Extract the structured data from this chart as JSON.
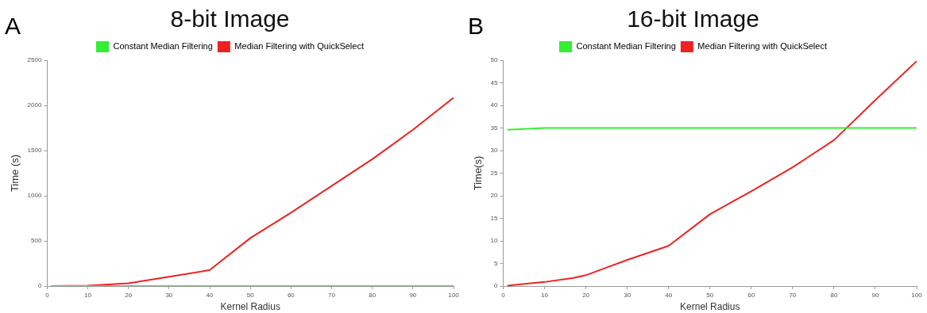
{
  "chart_data": [
    {
      "type": "line",
      "title": "8-bit Image",
      "xlabel": "Kernel Radius",
      "ylabel": "Time (s)",
      "annotations": [
        "A"
      ],
      "x": [
        1,
        10,
        20,
        30,
        40,
        50,
        60,
        70,
        80,
        90,
        100
      ],
      "series": [
        {
          "name": "Constant Median Filtering",
          "color": "#33ee33",
          "values": [
            0,
            0,
            0,
            0,
            0,
            0,
            0,
            0,
            0,
            0,
            0
          ]
        },
        {
          "name": "Median Filtering with QuickSelect",
          "color": "#ee2222",
          "values": [
            0,
            5,
            30,
            103,
            177,
            532,
            813,
            1109,
            1405,
            1730,
            2085
          ]
        }
      ],
      "xlim": [
        0,
        100
      ],
      "xticks": [
        0,
        10,
        20,
        30,
        40,
        50,
        60,
        70,
        80,
        90,
        100
      ],
      "ylim": [
        0,
        2500
      ],
      "yticks": [
        0,
        500,
        1000,
        1500,
        2000,
        2500
      ],
      "grid": false,
      "legend": "top",
      "marker": "none",
      "line_style": "solid"
    },
    {
      "type": "line",
      "title": "16-bit Image",
      "xlabel": "Kernel Radius",
      "ylabel": "Time(s)",
      "annotations": [
        "B"
      ],
      "x": [
        1,
        10,
        17,
        20,
        30,
        40,
        50,
        60,
        70,
        80,
        90,
        100
      ],
      "series": [
        {
          "name": "Constant Median Filtering",
          "color": "#33ee33",
          "values": [
            34.6,
            35,
            35,
            35,
            35,
            35,
            35,
            35,
            35,
            35,
            35,
            35
          ]
        },
        {
          "name": "Median Filtering with QuickSelect",
          "color": "#ee2222",
          "values": [
            0.1,
            0.9,
            1.8,
            2.4,
            5.8,
            8.9,
            15.9,
            21,
            26.3,
            32.3,
            41.2,
            49.8
          ]
        }
      ],
      "xlim": [
        0,
        100
      ],
      "xticks": [
        0,
        10,
        20,
        30,
        40,
        50,
        60,
        70,
        80,
        90,
        100
      ],
      "ylim": [
        0,
        50
      ],
      "yticks": [
        0,
        5,
        10,
        15,
        20,
        25,
        30,
        35,
        40,
        45,
        50
      ],
      "grid": false,
      "legend": "top",
      "marker": "none",
      "line_style": "solid"
    }
  ]
}
